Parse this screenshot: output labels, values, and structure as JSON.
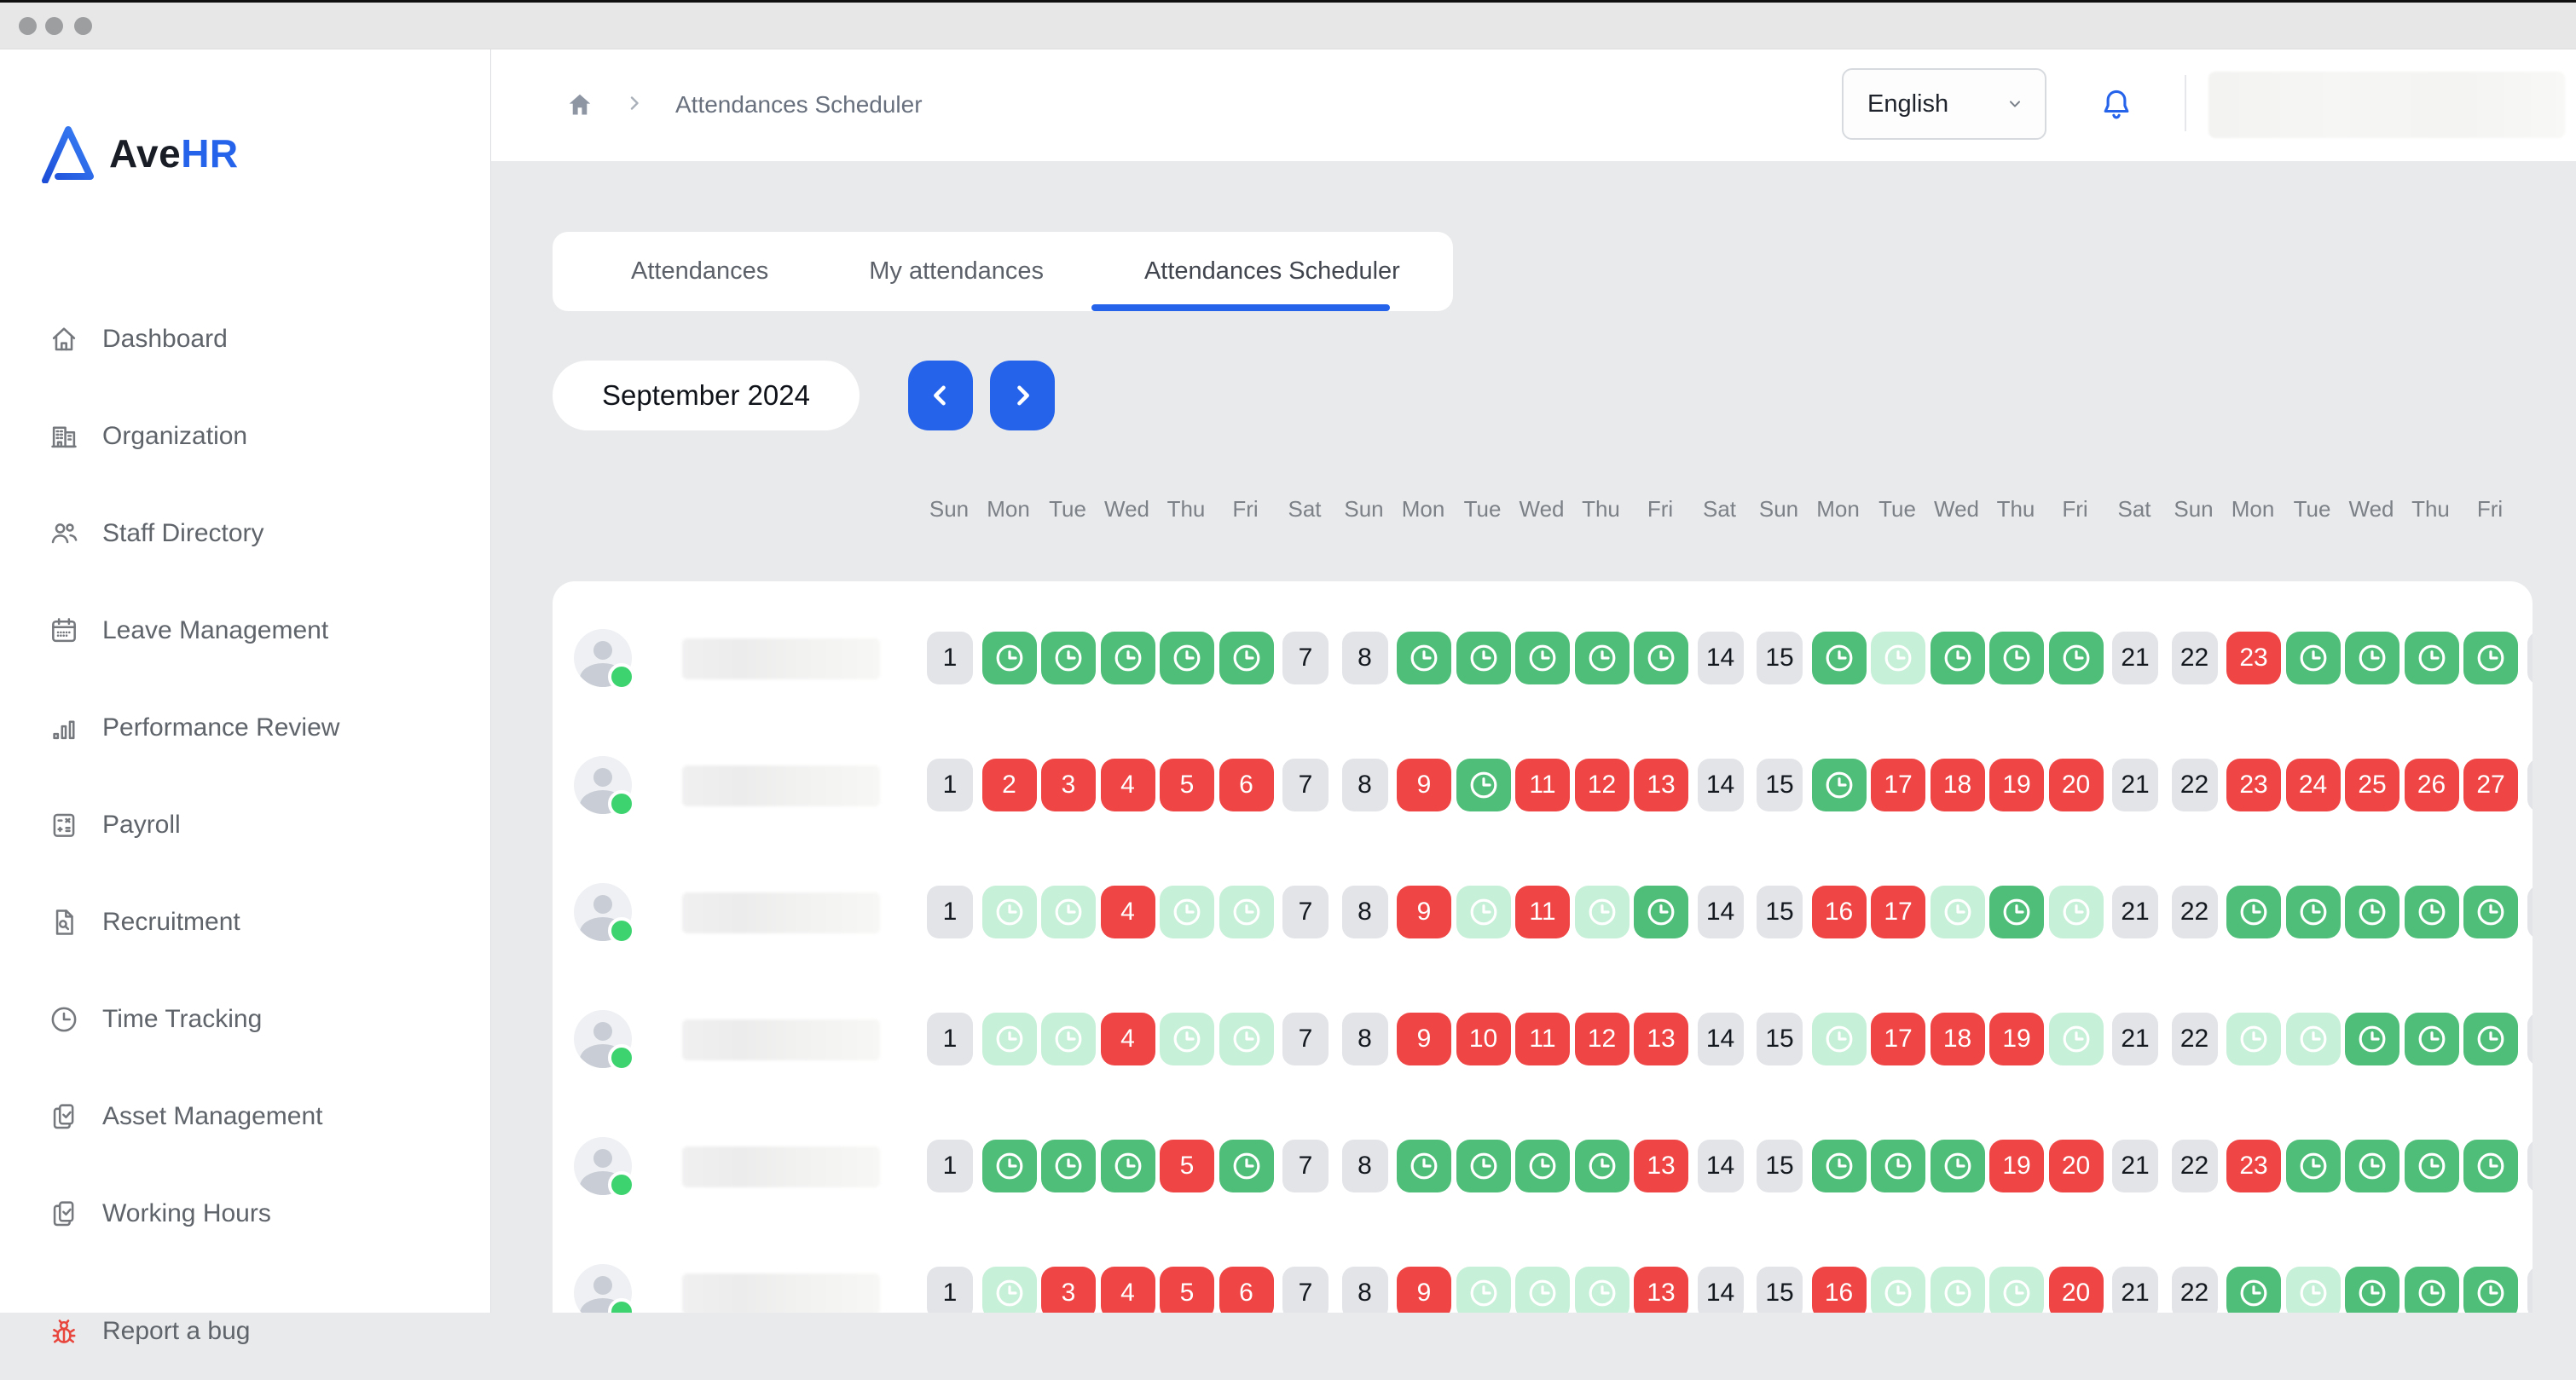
{
  "window": {
    "traffic_light_count": 3
  },
  "colors": {
    "accent_blue": "#2563eb",
    "green": "#4ebe79",
    "pale_green": "#c7f0d8",
    "red": "#ef4545",
    "cell_gray": "#e2e4e8",
    "bug_red": "#e8453c",
    "online_green": "#3dd470",
    "page_bg": "#e9eaec"
  },
  "sidebar": {
    "logo": {
      "icon": "avehr-triangle-logo",
      "text_primary": "Ave",
      "text_accent": "HR"
    },
    "items": [
      {
        "label": "Dashboard",
        "icon": "home"
      },
      {
        "label": "Organization",
        "icon": "building"
      },
      {
        "label": "Staff Directory",
        "icon": "users"
      },
      {
        "label": "Leave Management",
        "icon": "calendar"
      },
      {
        "label": "Performance Review",
        "icon": "bar-chart"
      },
      {
        "label": "Payroll",
        "icon": "calculator"
      },
      {
        "label": "Recruitment",
        "icon": "document-search"
      },
      {
        "label": "Time Tracking",
        "icon": "clock"
      },
      {
        "label": "Asset Management",
        "icon": "clipboard-check"
      },
      {
        "label": "Working Hours",
        "icon": "clipboard-check"
      }
    ],
    "footer_item": {
      "label": "Report a bug",
      "icon": "bug"
    }
  },
  "header": {
    "breadcrumb": {
      "home_icon": "home-filled",
      "separator": "chevron-right",
      "current": "Attendances Scheduler"
    },
    "language_select": {
      "value": "English",
      "chevron_icon": "chevron-down"
    },
    "bell_icon": "bell",
    "user_area_blurred": true
  },
  "tabs": [
    {
      "label": "Attendances",
      "active": false
    },
    {
      "label": "My attendances",
      "active": false
    },
    {
      "label": "Attendances Scheduler",
      "active": true
    }
  ],
  "scheduler": {
    "month_label": "September 2024",
    "nav": {
      "prev_icon": "chevron-left",
      "next_icon": "chevron-right"
    },
    "day_headers": [
      "Sun",
      "Mon",
      "Tue",
      "Wed",
      "Thu",
      "Fri",
      "Sat",
      "Sun",
      "Mon",
      "Tue",
      "Wed",
      "Thu",
      "Fri",
      "Sat",
      "Sun",
      "Mon",
      "Tue",
      "Wed",
      "Thu",
      "Fri",
      "Sat",
      "Sun",
      "Mon",
      "Tue",
      "Wed",
      "Thu",
      "Fri"
    ],
    "cell_state_legend": {
      "g": "weekend-plain-gray-number",
      "G": "attended-green-clock",
      "P": "scheduled-pale-green-clock",
      "R": "absent-red-number"
    },
    "clock_icon": "clock",
    "rows": [
      {
        "name_blurred": true,
        "online": true,
        "states": "gGGGGGggGGGGGggGPGGGggRGGGG"
      },
      {
        "name_blurred": true,
        "online": true,
        "states": "gRRRRRggRGRRRggGRRRRggRRRRR"
      },
      {
        "name_blurred": true,
        "online": true,
        "states": "gPPRPPggRPRPGggRRPGPggGGGGG"
      },
      {
        "name_blurred": true,
        "online": true,
        "states": "gPPRPPggRRRRRggPRRRPggPPGGG"
      },
      {
        "name_blurred": true,
        "online": true,
        "states": "gGGGRGggGGGGRggGGGRRggRGGGG"
      },
      {
        "name_blurred": true,
        "online": true,
        "states": "gPRRRRggRPPPRggRPPPRggGPGGG"
      }
    ],
    "clipped_next_column": {
      "state": "g",
      "label": ""
    }
  }
}
